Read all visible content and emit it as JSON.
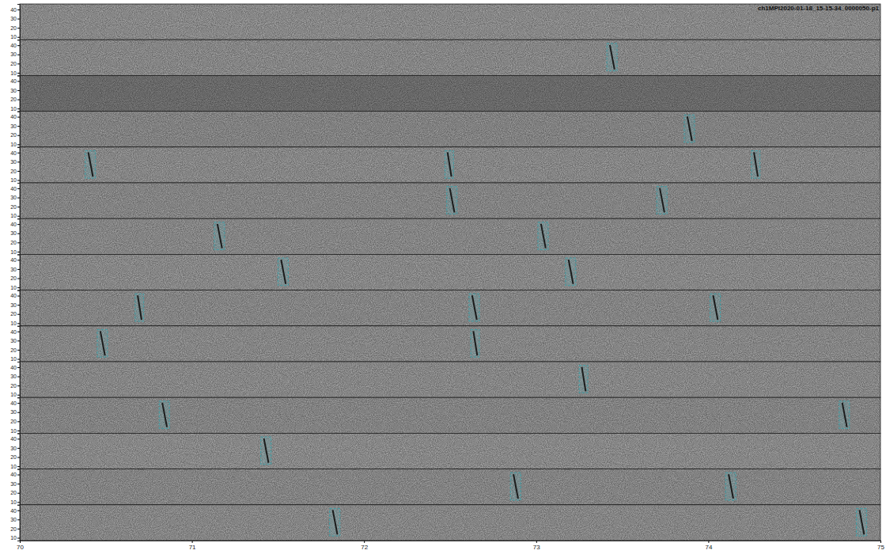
{
  "chart_data": {
    "type": "spectrogram",
    "title": "ch1MPI2020-01-18_15-15-34_0000050-p1",
    "xlim": [
      70,
      75
    ],
    "xticks": [
      70,
      71,
      72,
      73,
      74,
      75
    ],
    "ylim": [
      7,
      46
    ],
    "yticks": [
      10,
      20,
      30,
      40
    ],
    "panels": [
      {
        "color": "#b9b9b9",
        "detections": []
      },
      {
        "color": "#b6b6b6",
        "detections": [
          {
            "x0": 73.41,
            "x1": 73.47,
            "y0": 12,
            "y1": 42
          }
        ]
      },
      {
        "color": "#8f8f8f",
        "detections": []
      },
      {
        "color": "#b0b0b0",
        "detections": [
          {
            "x0": 73.86,
            "x1": 73.92,
            "y0": 12,
            "y1": 42
          }
        ]
      },
      {
        "color": "#b7b7b7",
        "detections": [
          {
            "x0": 70.38,
            "x1": 70.44,
            "y0": 12,
            "y1": 42
          },
          {
            "x0": 72.47,
            "x1": 72.52,
            "y0": 12,
            "y1": 42
          },
          {
            "x0": 74.25,
            "x1": 74.3,
            "y0": 12,
            "y1": 42
          }
        ]
      },
      {
        "color": "#b3b3b3",
        "detections": [
          {
            "x0": 72.48,
            "x1": 72.54,
            "y0": 12,
            "y1": 42
          },
          {
            "x0": 73.7,
            "x1": 73.76,
            "y0": 12,
            "y1": 42
          }
        ]
      },
      {
        "color": "#b5b5b5",
        "detections": [
          {
            "x0": 71.13,
            "x1": 71.19,
            "y0": 12,
            "y1": 42
          },
          {
            "x0": 73.01,
            "x1": 73.07,
            "y0": 12,
            "y1": 42
          }
        ]
      },
      {
        "color": "#b8b8b8",
        "detections": [
          {
            "x0": 71.5,
            "x1": 71.56,
            "y0": 12,
            "y1": 42
          },
          {
            "x0": 73.17,
            "x1": 73.23,
            "y0": 12,
            "y1": 42
          }
        ]
      },
      {
        "color": "#b4b4b4",
        "detections": [
          {
            "x0": 70.67,
            "x1": 70.72,
            "y0": 12,
            "y1": 42
          },
          {
            "x0": 72.61,
            "x1": 72.67,
            "y0": 12,
            "y1": 42
          },
          {
            "x0": 74.01,
            "x1": 74.07,
            "y0": 12,
            "y1": 42
          }
        ]
      },
      {
        "color": "#b6b6b6",
        "detections": [
          {
            "x0": 70.45,
            "x1": 70.51,
            "y0": 12,
            "y1": 42
          },
          {
            "x0": 72.62,
            "x1": 72.67,
            "y0": 12,
            "y1": 42
          }
        ]
      },
      {
        "color": "#b7b7b7",
        "detections": [
          {
            "x0": 73.25,
            "x1": 73.3,
            "y0": 12,
            "y1": 42
          }
        ]
      },
      {
        "color": "#b2b2b2",
        "detections": [
          {
            "x0": 70.81,
            "x1": 70.87,
            "y0": 12,
            "y1": 42
          },
          {
            "x0": 74.76,
            "x1": 74.82,
            "y0": 12,
            "y1": 42
          }
        ]
      },
      {
        "color": "#b9b9b9",
        "detections": [
          {
            "x0": 71.4,
            "x1": 71.46,
            "y0": 12,
            "y1": 42
          }
        ]
      },
      {
        "color": "#b3b3b3",
        "detections": [
          {
            "x0": 72.85,
            "x1": 72.91,
            "y0": 12,
            "y1": 42
          },
          {
            "x0": 74.1,
            "x1": 74.16,
            "y0": 12,
            "y1": 42
          }
        ]
      },
      {
        "color": "#b6b6b6",
        "detections": [
          {
            "x0": 71.8,
            "x1": 71.86,
            "y0": 12,
            "y1": 42
          },
          {
            "x0": 74.86,
            "x1": 74.92,
            "y0": 12,
            "y1": 42
          }
        ]
      }
    ]
  }
}
